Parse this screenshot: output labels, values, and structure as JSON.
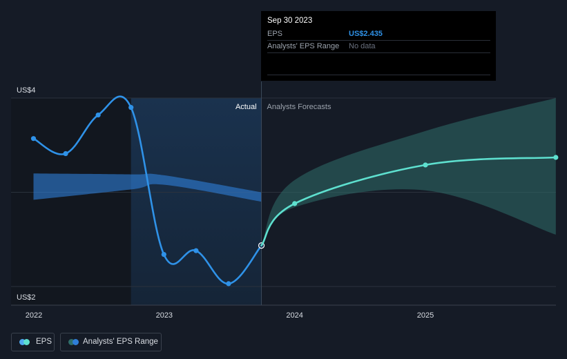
{
  "chart_data": {
    "type": "line",
    "y_ticks": [
      "US$4",
      "US$2"
    ],
    "ylim": [
      2.0,
      4.0
    ],
    "x_ticks": [
      "2022",
      "2023",
      "2024",
      "2025"
    ],
    "region_labels": {
      "actual": "Actual",
      "forecast": "Analysts Forecasts"
    },
    "series": [
      {
        "name": "EPS",
        "color": "#2f92e8",
        "points": [
          {
            "x": "2021-12-31",
            "y": 3.57
          },
          {
            "x": "2022-03-31",
            "y": 3.41
          },
          {
            "x": "2022-06-30",
            "y": 3.82
          },
          {
            "x": "2022-09-30",
            "y": 3.9
          },
          {
            "x": "2022-12-31",
            "y": 2.34
          },
          {
            "x": "2023-03-31",
            "y": 2.38
          },
          {
            "x": "2023-06-30",
            "y": 2.03
          },
          {
            "x": "2023-09-30",
            "y": 2.435
          }
        ]
      },
      {
        "name": "EPS forecast",
        "color": "#5ee0cf",
        "points": [
          {
            "x": "2023-09-30",
            "y": 2.435
          },
          {
            "x": "2024-01-01",
            "y": 2.88
          },
          {
            "x": "2025-01-01",
            "y": 3.29
          },
          {
            "x": "2026-01-01",
            "y": 3.37
          }
        ]
      }
    ],
    "ranges": [
      {
        "name": "Analysts' EPS Range (past)",
        "color": "#2f7ed8",
        "upper": [
          {
            "x": "2021-12-31",
            "y": 3.2
          },
          {
            "x": "2022-09-30",
            "y": 3.19
          },
          {
            "x": "2023-01-01",
            "y": 3.18
          },
          {
            "x": "2023-09-30",
            "y": 3.0
          }
        ],
        "lower": [
          {
            "x": "2021-12-31",
            "y": 2.92
          },
          {
            "x": "2022-09-30",
            "y": 3.03
          },
          {
            "x": "2023-01-01",
            "y": 3.08
          },
          {
            "x": "2023-09-30",
            "y": 2.9
          }
        ]
      },
      {
        "name": "Analysts' EPS Range",
        "color": "#2f6e6a",
        "upper": [
          {
            "x": "2023-09-30",
            "y": 2.435
          },
          {
            "x": "2024-01-01",
            "y": 3.13
          },
          {
            "x": "2025-01-01",
            "y": 3.65
          },
          {
            "x": "2026-01-01",
            "y": 4.0
          }
        ],
        "lower": [
          {
            "x": "2023-09-30",
            "y": 2.435
          },
          {
            "x": "2024-01-01",
            "y": 2.84
          },
          {
            "x": "2025-01-01",
            "y": 3.02
          },
          {
            "x": "2026-01-01",
            "y": 2.55
          }
        ]
      }
    ],
    "legend": [
      {
        "label": "EPS",
        "color": "#4fa8f0",
        "color2": "#5ee0cf"
      },
      {
        "label": "Analysts' EPS Range",
        "color": "#2f6e6a",
        "color2": "#2f7ed8"
      }
    ]
  },
  "tooltip": {
    "date": "Sep 30 2023",
    "eps_label": "EPS",
    "eps_value": "US$2.435",
    "range_label": "Analysts' EPS Range",
    "range_value": "No data"
  }
}
